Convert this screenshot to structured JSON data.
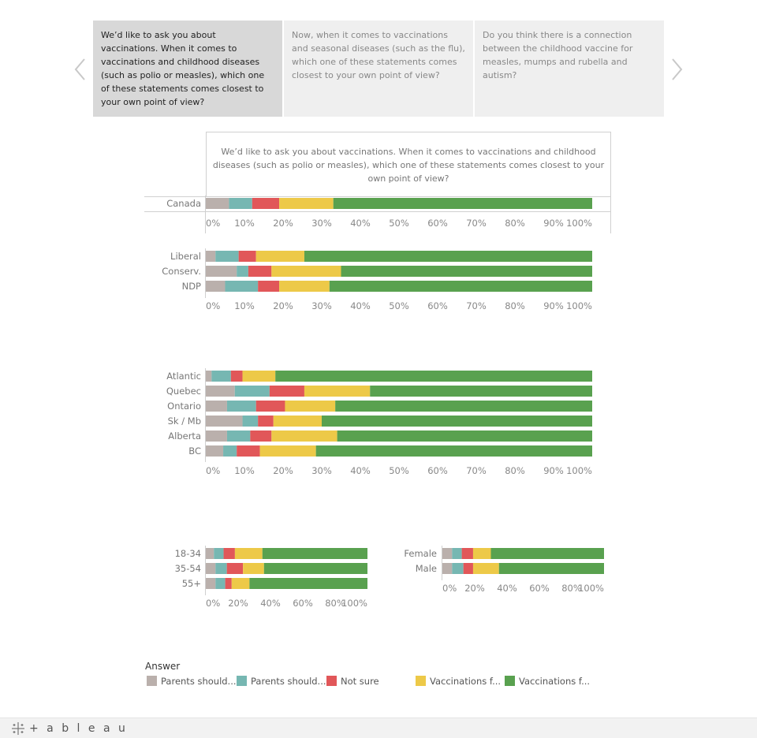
{
  "nav": {
    "prev_icon": "chevron-left-icon",
    "next_icon": "chevron-right-icon"
  },
  "tabs": [
    {
      "label": "We’d like to ask you about vaccinations. When it comes to vaccinations and childhood diseases (such as polio or measles), which one of these statements comes closest to your own point of view?",
      "active": true
    },
    {
      "label": "Now, when it comes to vaccinations and seasonal diseases (such as the flu), which one of these statements comes closest to your own point of view?",
      "active": false
    },
    {
      "label": "Do you think there is a connection between the childhood vaccine for measles, mumps and rubella and autism?",
      "active": false
    }
  ],
  "chart_title": "We’d like to ask you about vaccinations. When it comes to vaccinations and childhood diseases (such as polio or measles), which one of these statements comes closest to your own point of view?",
  "legend": {
    "title": "Answer",
    "items": [
      {
        "label": "Parents should...",
        "color": "#bab0ac"
      },
      {
        "label": "Parents should...",
        "color": "#76b7b2"
      },
      {
        "label": "Not sure",
        "color": "#e15759"
      },
      {
        "label": "Vaccinations f...",
        "color": "#edc948"
      },
      {
        "label": "Vaccinations f...",
        "color": "#59a14f"
      }
    ]
  },
  "footer": {
    "brand": "+ a b l e a u"
  },
  "chart_data": [
    {
      "type": "bar",
      "stacked": true,
      "orientation": "horizontal",
      "categories": [
        "Canada"
      ],
      "series": [
        {
          "values": [
            6
          ]
        },
        {
          "values": [
            6
          ]
        },
        {
          "values": [
            7
          ]
        },
        {
          "values": [
            14
          ]
        },
        {
          "values": [
            67
          ]
        }
      ],
      "xlim": [
        0,
        100
      ],
      "ticks": [
        "0%",
        "10%",
        "20%",
        "30%",
        "40%",
        "50%",
        "60%",
        "70%",
        "80%",
        "90%",
        "100%"
      ]
    },
    {
      "type": "bar",
      "stacked": true,
      "orientation": "horizontal",
      "categories": [
        "Liberal",
        "Conserv.",
        "NDP"
      ],
      "series": [
        {
          "values": [
            2.5,
            8,
            5
          ]
        },
        {
          "values": [
            6,
            3,
            8.5
          ]
        },
        {
          "values": [
            4.5,
            6,
            5.5
          ]
        },
        {
          "values": [
            12.5,
            18,
            13
          ]
        },
        {
          "values": [
            74.5,
            65,
            68
          ]
        }
      ],
      "xlim": [
        0,
        100
      ],
      "ticks": [
        "0%",
        "10%",
        "20%",
        "30%",
        "40%",
        "50%",
        "60%",
        "70%",
        "80%",
        "90%",
        "100%"
      ]
    },
    {
      "type": "bar",
      "stacked": true,
      "orientation": "horizontal",
      "categories": [
        "Atlantic",
        "Quebec",
        "Ontario",
        "Sk / Mb",
        "Alberta",
        "BC"
      ],
      "series": [
        {
          "values": [
            1.5,
            7.5,
            5.5,
            9.5,
            5.5,
            4.5
          ]
        },
        {
          "values": [
            5,
            9,
            7.5,
            4,
            6,
            3.5
          ]
        },
        {
          "values": [
            3,
            9,
            7.5,
            4,
            5.5,
            6
          ]
        },
        {
          "values": [
            8.5,
            17,
            13,
            12.5,
            17,
            14.5
          ]
        },
        {
          "values": [
            82,
            57.5,
            66.5,
            70,
            66,
            71.5
          ]
        }
      ],
      "xlim": [
        0,
        100
      ],
      "ticks": [
        "0%",
        "10%",
        "20%",
        "30%",
        "40%",
        "50%",
        "60%",
        "70%",
        "80%",
        "90%",
        "100%"
      ]
    },
    {
      "type": "bar",
      "stacked": true,
      "orientation": "horizontal",
      "categories": [
        "18-34",
        "35-54",
        "55+"
      ],
      "series": [
        {
          "values": [
            5,
            6,
            6
          ]
        },
        {
          "values": [
            6,
            7,
            6
          ]
        },
        {
          "values": [
            7,
            10,
            4
          ]
        },
        {
          "values": [
            17,
            13,
            11
          ]
        },
        {
          "values": [
            65,
            64,
            73
          ]
        }
      ],
      "xlim": [
        0,
        100
      ],
      "ticks": [
        "0%",
        "20%",
        "40%",
        "60%",
        "80%",
        "100%"
      ]
    },
    {
      "type": "bar",
      "stacked": true,
      "orientation": "horizontal",
      "categories": [
        "Female",
        "Male"
      ],
      "series": [
        {
          "values": [
            6,
            6
          ]
        },
        {
          "values": [
            6,
            7
          ]
        },
        {
          "values": [
            7,
            6
          ]
        },
        {
          "values": [
            11,
            16
          ]
        },
        {
          "values": [
            70,
            65
          ]
        }
      ],
      "xlim": [
        0,
        100
      ],
      "ticks": [
        "0%",
        "20%",
        "40%",
        "60%",
        "80%",
        "100%"
      ]
    }
  ]
}
